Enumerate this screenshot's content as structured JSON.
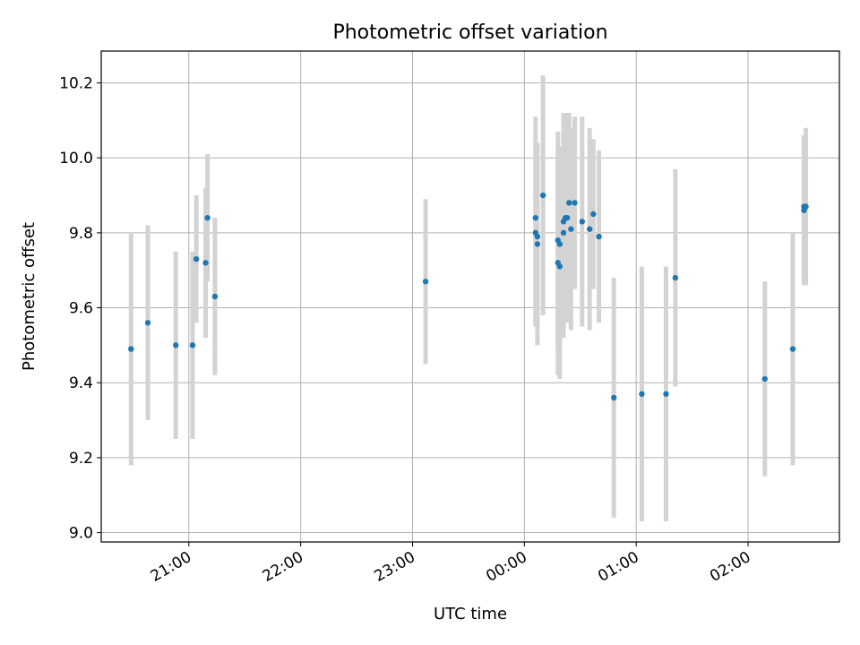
{
  "chart_data": {
    "type": "scatter",
    "title": "Photometric offset variation",
    "xlabel": "UTC time",
    "ylabel": "Photometric offset",
    "x_axis_kind": "time",
    "x_ticks": [
      "21:00",
      "22:00",
      "23:00",
      "00:00",
      "01:00",
      "02:00"
    ],
    "x_tick_labels_rotated": true,
    "xlim": [
      "20:13",
      "02:49"
    ],
    "ylim": [
      8.975,
      10.285
    ],
    "y_ticks": [
      9.0,
      9.2,
      9.4,
      9.6,
      9.8,
      10.0,
      10.2
    ],
    "grid": true,
    "marker_color": "#1f77b4",
    "errorbar_color": "#d3d3d3",
    "series": [
      {
        "points": [
          {
            "x": "20:29",
            "y": 9.49,
            "err": 0.31
          },
          {
            "x": "20:38",
            "y": 9.56,
            "err": 0.26
          },
          {
            "x": "20:53",
            "y": 9.5,
            "err": 0.25
          },
          {
            "x": "21:02",
            "y": 9.5,
            "err": 0.25
          },
          {
            "x": "21:04",
            "y": 9.73,
            "err": 0.17
          },
          {
            "x": "21:09",
            "y": 9.72,
            "err": 0.2
          },
          {
            "x": "21:10",
            "y": 9.84,
            "err": 0.17
          },
          {
            "x": "21:14",
            "y": 9.63,
            "err": 0.21
          },
          {
            "x": "23:07",
            "y": 9.67,
            "err": 0.22
          },
          {
            "x": "00:06",
            "y": 9.84,
            "err": 0.27
          },
          {
            "x": "00:06",
            "y": 9.8,
            "err": 0.25
          },
          {
            "x": "00:07",
            "y": 9.79,
            "err": 0.25
          },
          {
            "x": "00:07",
            "y": 9.77,
            "err": 0.27
          },
          {
            "x": "00:10",
            "y": 9.9,
            "err": 0.32
          },
          {
            "x": "00:18",
            "y": 9.78,
            "err": 0.29
          },
          {
            "x": "00:18",
            "y": 9.72,
            "err": 0.3
          },
          {
            "x": "00:19",
            "y": 9.71,
            "err": 0.3
          },
          {
            "x": "00:19",
            "y": 9.77,
            "err": 0.26
          },
          {
            "x": "00:21",
            "y": 9.8,
            "err": 0.28
          },
          {
            "x": "00:21",
            "y": 9.83,
            "err": 0.29
          },
          {
            "x": "00:22",
            "y": 9.84,
            "err": 0.28
          },
          {
            "x": "00:23",
            "y": 9.84,
            "err": 0.28
          },
          {
            "x": "00:24",
            "y": 9.88,
            "err": 0.24
          },
          {
            "x": "00:25",
            "y": 9.81,
            "err": 0.27
          },
          {
            "x": "00:27",
            "y": 9.88,
            "err": 0.23
          },
          {
            "x": "00:31",
            "y": 9.83,
            "err": 0.28
          },
          {
            "x": "00:35",
            "y": 9.81,
            "err": 0.27
          },
          {
            "x": "00:37",
            "y": 9.85,
            "err": 0.2
          },
          {
            "x": "00:40",
            "y": 9.79,
            "err": 0.23
          },
          {
            "x": "00:48",
            "y": 9.36,
            "err": 0.32
          },
          {
            "x": "01:03",
            "y": 9.37,
            "err": 0.34
          },
          {
            "x": "01:16",
            "y": 9.37,
            "err": 0.34
          },
          {
            "x": "01:21",
            "y": 9.68,
            "err": 0.29
          },
          {
            "x": "02:09",
            "y": 9.41,
            "err": 0.26
          },
          {
            "x": "02:24",
            "y": 9.49,
            "err": 0.31
          },
          {
            "x": "02:30",
            "y": 9.87,
            "err": 0.19
          },
          {
            "x": "02:30",
            "y": 9.86,
            "err": 0.2
          },
          {
            "x": "02:31",
            "y": 9.87,
            "err": 0.21
          }
        ]
      }
    ]
  }
}
